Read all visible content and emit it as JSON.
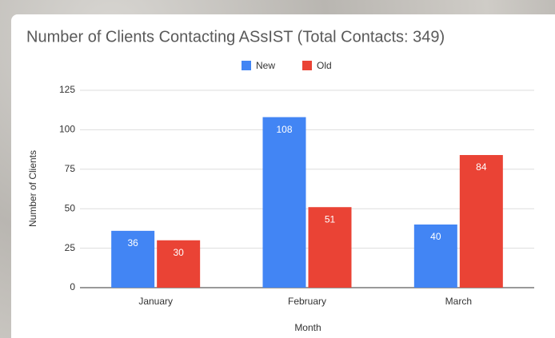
{
  "chart_data": {
    "type": "bar",
    "title": "Number of Clients Contacting ASsIST (Total Contacts: 349)",
    "x_label": "Month",
    "y_label": "Number of Clients",
    "categories": [
      "January",
      "February",
      "March"
    ],
    "series": [
      {
        "name": "New",
        "color": "#4285f4",
        "values": [
          36,
          108,
          40
        ]
      },
      {
        "name": "Old",
        "color": "#ea4335",
        "values": [
          30,
          51,
          84
        ]
      }
    ],
    "ylim": [
      0,
      125
    ],
    "yticks": [
      0,
      25,
      50,
      75,
      100,
      125
    ],
    "grid": true,
    "legend": "top"
  }
}
